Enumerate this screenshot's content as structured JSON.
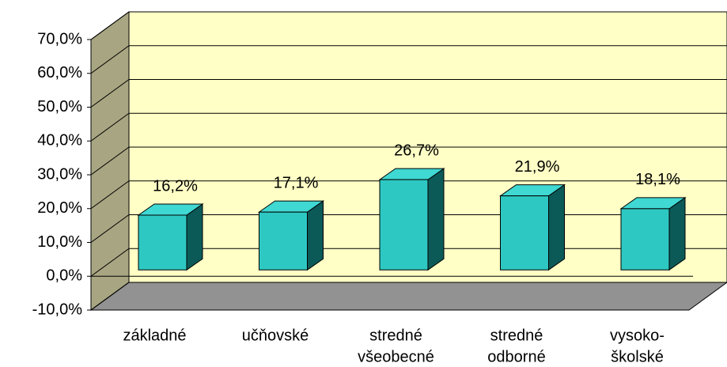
{
  "chart_data": {
    "type": "bar3d",
    "categories": [
      [
        "základné"
      ],
      [
        "učňovské"
      ],
      [
        "stredné",
        "všeobecné"
      ],
      [
        "stredné",
        "odborné"
      ],
      [
        "vysoko-",
        "školské"
      ]
    ],
    "values": [
      16.2,
      17.1,
      26.7,
      21.9,
      18.1
    ],
    "value_labels": [
      "16,2%",
      "17,1%",
      "26,7%",
      "21,9%",
      "18,1%"
    ],
    "color": "#2ec8c2",
    "ylim": [
      -10,
      70
    ],
    "yticks": [
      {
        "value": -10,
        "label": "-10,0%"
      },
      {
        "value": 0,
        "label": "0,0%"
      },
      {
        "value": 10,
        "label": "10,0%"
      },
      {
        "value": 20,
        "label": "20,0%"
      },
      {
        "value": 30,
        "label": "30,0%"
      },
      {
        "value": 40,
        "label": "40,0%"
      },
      {
        "value": 50,
        "label": "50,0%"
      },
      {
        "value": 60,
        "label": "60,0%"
      },
      {
        "value": 70,
        "label": "70,0%"
      }
    ],
    "grid": true
  }
}
